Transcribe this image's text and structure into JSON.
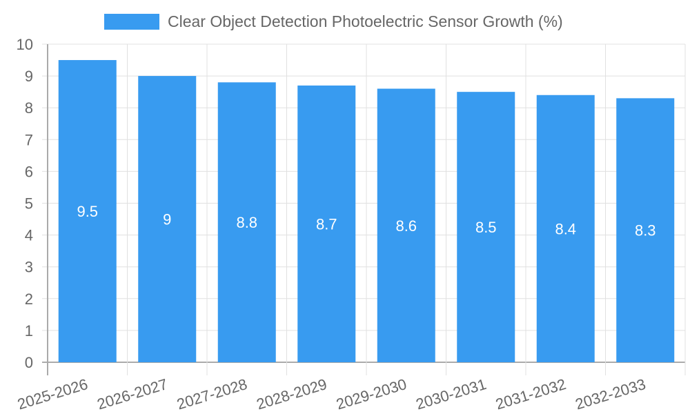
{
  "chart_data": {
    "type": "bar",
    "title": "",
    "legend": [
      {
        "label": "Clear Object Detection Photoelectric Sensor Growth (%)",
        "color": "#389bf0"
      }
    ],
    "legend_position": "top",
    "categories": [
      "2025-2026",
      "2026-2027",
      "2027-2028",
      "2028-2029",
      "2029-2030",
      "2030-2031",
      "2031-2032",
      "2032-2033"
    ],
    "series": [
      {
        "name": "Clear Object Detection Photoelectric Sensor Growth (%)",
        "values": [
          9.5,
          9,
          8.8,
          8.7,
          8.6,
          8.5,
          8.4,
          8.3
        ]
      }
    ],
    "data_labels": [
      "9.5",
      "9",
      "8.8",
      "8.7",
      "8.6",
      "8.5",
      "8.4",
      "8.3"
    ],
    "xlabel": "",
    "ylabel": "",
    "ylim": [
      0,
      10
    ],
    "yticks": [
      "0",
      "1",
      "2",
      "3",
      "4",
      "5",
      "6",
      "7",
      "8",
      "9",
      "10"
    ],
    "grid": true
  },
  "legend": {
    "label": "Clear Object Detection Photoelectric Sensor Growth (%)"
  }
}
